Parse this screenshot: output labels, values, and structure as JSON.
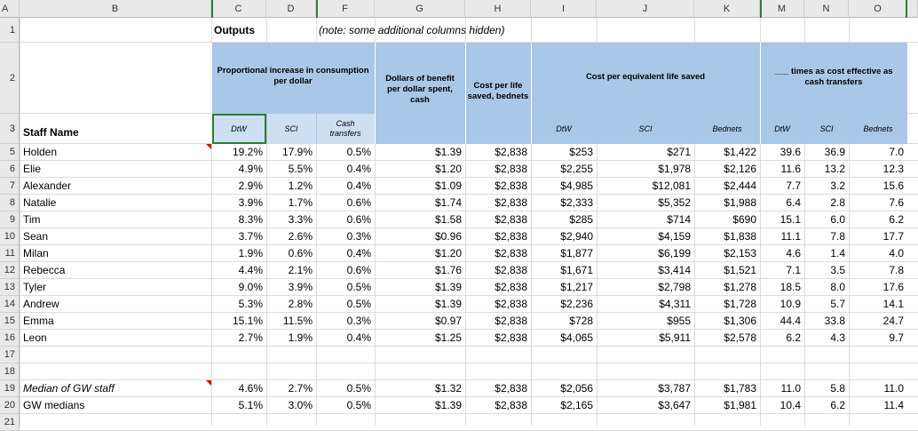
{
  "columns": [
    "A",
    "B",
    "C",
    "D",
    "F",
    "G",
    "H",
    "I",
    "J",
    "K",
    "M",
    "N",
    "O"
  ],
  "row_numbers": [
    "1",
    "2",
    "3",
    "5",
    "6",
    "7",
    "8",
    "9",
    "10",
    "11",
    "12",
    "13",
    "14",
    "15",
    "16",
    "17",
    "18",
    "19",
    "20",
    "21"
  ],
  "headers": {
    "outputs": "Outputs",
    "note": "(note: some additional columns hidden)",
    "staff_name": "Staff Name",
    "prop_increase": "Proportional increase in consumption per dollar",
    "dollars_benefit": "Dollars of benefit per dollar spent, cash",
    "cost_per_life": "Cost per life saved, bednets",
    "cost_equiv": "Cost per equivalent life saved",
    "times_effective": "___ times as cost effective as cash transfers",
    "sub_dtw": "DtW",
    "sub_sci": "SCI",
    "sub_cash": "Cash transfers",
    "sub_dtw2": "DtW",
    "sub_sci2": "SCI",
    "sub_bednets": "Bednets",
    "sub_dtw3": "DtW",
    "sub_sci3": "SCI",
    "sub_bednets3": "Bednets"
  },
  "rows": [
    {
      "name": "Holden",
      "c": "19.2%",
      "d": "17.9%",
      "f": "0.5%",
      "g": "$1.39",
      "h": "$2,838",
      "i": "$253",
      "j": "$271",
      "k": "$1,422",
      "m": "39.6",
      "n": "36.9",
      "o": "7.0"
    },
    {
      "name": "Elie",
      "c": "4.9%",
      "d": "5.5%",
      "f": "0.4%",
      "g": "$1.20",
      "h": "$2,838",
      "i": "$2,255",
      "j": "$1,978",
      "k": "$2,126",
      "m": "11.6",
      "n": "13.2",
      "o": "12.3"
    },
    {
      "name": "Alexander",
      "c": "2.9%",
      "d": "1.2%",
      "f": "0.4%",
      "g": "$1.09",
      "h": "$2,838",
      "i": "$4,985",
      "j": "$12,081",
      "k": "$2,444",
      "m": "7.7",
      "n": "3.2",
      "o": "15.6"
    },
    {
      "name": "Natalie",
      "c": "3.9%",
      "d": "1.7%",
      "f": "0.6%",
      "g": "$1.74",
      "h": "$2,838",
      "i": "$2,333",
      "j": "$5,352",
      "k": "$1,988",
      "m": "6.4",
      "n": "2.8",
      "o": "7.6"
    },
    {
      "name": "Tim",
      "c": "8.3%",
      "d": "3.3%",
      "f": "0.6%",
      "g": "$1.58",
      "h": "$2,838",
      "i": "$285",
      "j": "$714",
      "k": "$690",
      "m": "15.1",
      "n": "6.0",
      "o": "6.2"
    },
    {
      "name": "Sean",
      "c": "3.7%",
      "d": "2.6%",
      "f": "0.3%",
      "g": "$0.96",
      "h": "$2,838",
      "i": "$2,940",
      "j": "$4,159",
      "k": "$1,838",
      "m": "11.1",
      "n": "7.8",
      "o": "17.7"
    },
    {
      "name": "Milan",
      "c": "1.9%",
      "d": "0.6%",
      "f": "0.4%",
      "g": "$1.20",
      "h": "$2,838",
      "i": "$1,877",
      "j": "$6,199",
      "k": "$2,153",
      "m": "4.6",
      "n": "1.4",
      "o": "4.0"
    },
    {
      "name": "Rebecca",
      "c": "4.4%",
      "d": "2.1%",
      "f": "0.6%",
      "g": "$1.76",
      "h": "$2,838",
      "i": "$1,671",
      "j": "$3,414",
      "k": "$1,521",
      "m": "7.1",
      "n": "3.5",
      "o": "7.8"
    },
    {
      "name": "Tyler",
      "c": "9.0%",
      "d": "3.9%",
      "f": "0.5%",
      "g": "$1.39",
      "h": "$2,838",
      "i": "$1,217",
      "j": "$2,798",
      "k": "$1,278",
      "m": "18.5",
      "n": "8.0",
      "o": "17.6"
    },
    {
      "name": "Andrew",
      "c": "5.3%",
      "d": "2.8%",
      "f": "0.5%",
      "g": "$1.39",
      "h": "$2,838",
      "i": "$2,236",
      "j": "$4,311",
      "k": "$1,728",
      "m": "10.9",
      "n": "5.7",
      "o": "14.1"
    },
    {
      "name": "Emma",
      "c": "15.1%",
      "d": "11.5%",
      "f": "0.3%",
      "g": "$0.97",
      "h": "$2,838",
      "i": "$728",
      "j": "$955",
      "k": "$1,306",
      "m": "44.4",
      "n": "33.8",
      "o": "24.7"
    },
    {
      "name": "Leon",
      "c": "2.7%",
      "d": "1.9%",
      "f": "0.4%",
      "g": "$1.25",
      "h": "$2,838",
      "i": "$4,065",
      "j": "$5,911",
      "k": "$2,578",
      "m": "6.2",
      "n": "4.3",
      "o": "9.7"
    }
  ],
  "summary": [
    {
      "name": "Median of GW staff",
      "c": "4.6%",
      "d": "2.7%",
      "f": "0.5%",
      "g": "$1.32",
      "h": "$2,838",
      "i": "$2,056",
      "j": "$3,787",
      "k": "$1,783",
      "m": "11.0",
      "n": "5.8",
      "o": "11.0"
    },
    {
      "name": "GW medians",
      "c": "5.1%",
      "d": "3.0%",
      "f": "0.5%",
      "g": "$1.39",
      "h": "$2,838",
      "i": "$2,165",
      "j": "$3,647",
      "k": "$1,981",
      "m": "10.4",
      "n": "6.2",
      "o": "11.4"
    }
  ],
  "colors": {
    "header_blue": "#a9c7e7",
    "sub_blue": "#cddff2",
    "selection_green": "#2f7d32",
    "comment_marker": "#dd0000"
  }
}
